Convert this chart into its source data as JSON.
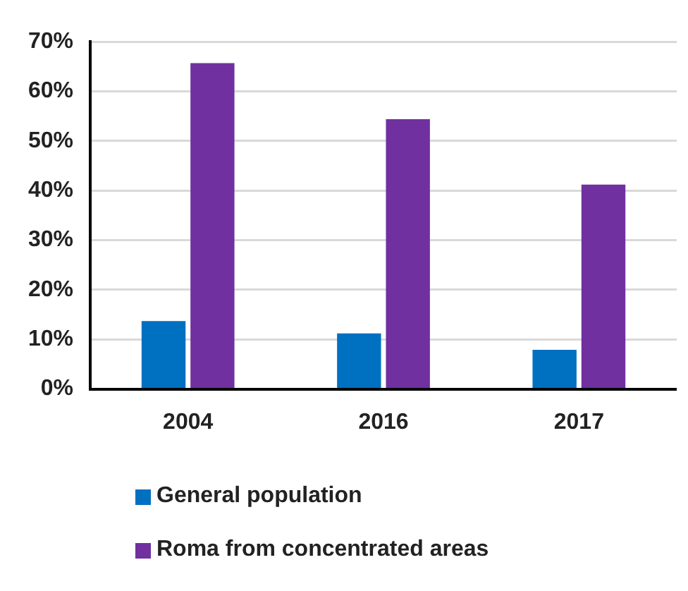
{
  "chart_data": {
    "type": "bar",
    "categories": [
      "2004",
      "2016",
      "2017"
    ],
    "series": [
      {
        "name": "General population",
        "color": "#0070c0",
        "values": [
          13.7,
          11.2,
          7.9
        ]
      },
      {
        "name": "Roma from concentrated areas",
        "color": "#7030a0",
        "values": [
          65.7,
          54.4,
          41.2
        ]
      }
    ],
    "ylim": [
      0,
      70
    ],
    "yticks": [
      {
        "value": 0,
        "label": "0%"
      },
      {
        "value": 10,
        "label": "10%"
      },
      {
        "value": 20,
        "label": "20%"
      },
      {
        "value": 30,
        "label": "30%"
      },
      {
        "value": 40,
        "label": "40%"
      },
      {
        "value": 50,
        "label": "50%"
      },
      {
        "value": 60,
        "label": "60%"
      },
      {
        "value": 70,
        "label": "70%"
      }
    ],
    "grid": "y",
    "legend": "bottom"
  }
}
